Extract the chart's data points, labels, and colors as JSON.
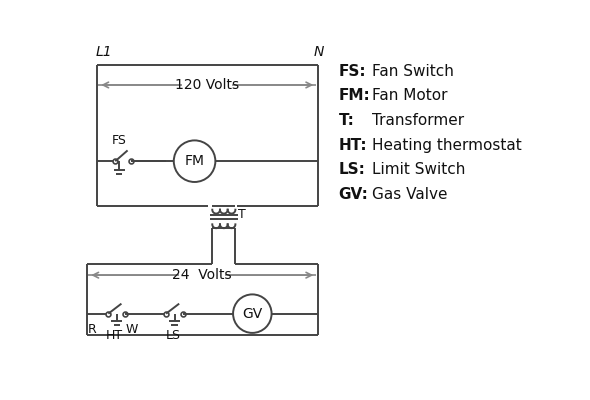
{
  "bg_color": "#ffffff",
  "line_color": "#444444",
  "arrow_color": "#888888",
  "text_color": "#111111",
  "legend_items": [
    [
      "FS:",
      "Fan Switch"
    ],
    [
      "FM:",
      "Fan Motor"
    ],
    [
      "T:",
      "Transformer"
    ],
    [
      "HT:",
      "Heating thermostat"
    ],
    [
      "LS:",
      "Limit Switch"
    ],
    [
      "GV:",
      "Gas Valve"
    ]
  ],
  "label_L1": "L1",
  "label_N": "N",
  "label_120V": "120 Volts",
  "label_24V": "24  Volts",
  "label_T": "T",
  "label_FS": "FS",
  "label_FM": "FM",
  "label_GV": "GV",
  "label_R": "R",
  "label_W": "W",
  "label_HT": "HT",
  "label_LS": "LS"
}
